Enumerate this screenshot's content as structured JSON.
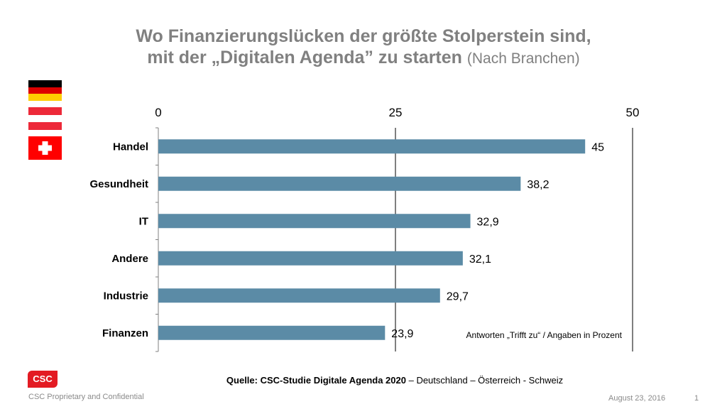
{
  "title_line1": "Wo Finanzierungslücken der größte Stolperstein sind,",
  "title_line2": "mit der „Digitalen Agenda” zu starten",
  "title_suffix": "(Nach Branchen)",
  "flags": [
    {
      "name": "germany-flag",
      "colors": [
        "#000000",
        "#dd0000",
        "#ffce00"
      ]
    },
    {
      "name": "austria-flag",
      "colors": [
        "#ed2939",
        "#ffffff",
        "#ed2939"
      ]
    },
    {
      "name": "switzerland-flag",
      "colors": [
        "#ff0000",
        "#ffffff"
      ]
    }
  ],
  "chart_data": {
    "type": "bar",
    "orientation": "horizontal",
    "categories": [
      "Handel",
      "Gesundheit",
      "IT",
      "Andere",
      "Industrie",
      "Finanzen"
    ],
    "values": [
      45,
      38.2,
      32.9,
      32.1,
      29.7,
      23.9
    ],
    "value_labels": [
      "45",
      "38,2",
      "32,9",
      "32,1",
      "29,7",
      "23,9"
    ],
    "xlim": [
      0,
      50
    ],
    "ticks": [
      0,
      25,
      50
    ],
    "tick_labels": [
      "0",
      "25",
      "50"
    ],
    "axis_position": "top",
    "bar_color": "#5b8ba6",
    "gridlines": [
      25,
      50
    ],
    "annotation": "Antworten „Trifft zu“ / Angaben in Prozent"
  },
  "source_bold": "Quelle: CSC-Studie Digitale Agenda 2020",
  "source_rest": " – Deutschland – Österreich - Schweiz",
  "logo_text": "CSC",
  "footer_left": "CSC Proprietary and Confidential",
  "footer_date": "August 23, 2016",
  "footer_page": "1"
}
